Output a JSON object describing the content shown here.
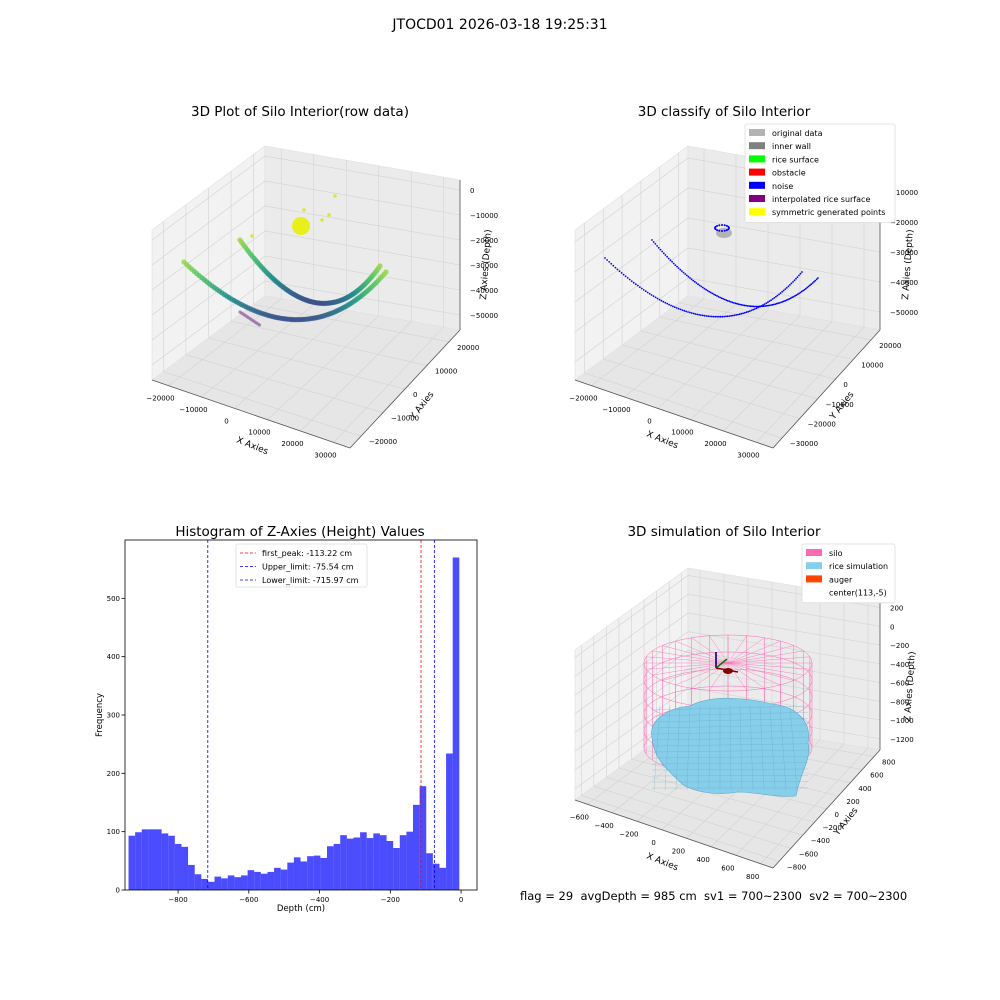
{
  "suptitle": "JTOCD01 2026-03-18 19:25:31",
  "footer": "flag = 29  avgDepth = 985 cm  sv1 = 700~2300  sv2 = 700~2300",
  "chart_data": [
    {
      "type": "scatter",
      "title": "3D Plot of Silo Interior(row data)",
      "xlabel": "X Axies",
      "ylabel": "Y Axies",
      "zlabel": "Z Axies (Depth)",
      "x_ticks": [
        "−20000",
        "−10000",
        "0",
        "10000",
        "20000",
        "30000"
      ],
      "y_ticks": [
        "−20000",
        "−10000",
        "0",
        "10000",
        "20000"
      ],
      "z_ticks": [
        "0",
        "−10000",
        "−20000",
        "−30000",
        "−40000",
        "−50000"
      ],
      "series": [
        {
          "colormap": "viridis",
          "x": [
            -26000,
            -20000,
            -12000,
            -4000,
            4000,
            12000,
            20000,
            27000
          ],
          "y": [
            -4000,
            4000,
            9000,
            12000,
            12000,
            9000,
            4000,
            -4000
          ],
          "z": [
            -25000,
            -33000,
            -39000,
            -43000,
            -43000,
            -39000,
            -33000,
            -25000
          ]
        },
        {
          "colormap": "viridis",
          "x": [
            -8000,
            -2000,
            4000,
            10000,
            16000,
            22000,
            28000
          ],
          "y": [
            18000,
            12000,
            6000,
            0,
            -6000,
            -12000,
            -18000
          ],
          "z": [
            -12000,
            -24000,
            -33000,
            -40000,
            -44000,
            -38000,
            -28000
          ]
        }
      ]
    },
    {
      "type": "scatter",
      "title": "3D classify of Silo Interior",
      "xlabel": "X Axies",
      "ylabel": "Y Axies",
      "zlabel": "Z Axies (Depth)",
      "x_ticks": [
        "−20000",
        "−10000",
        "0",
        "10000",
        "20000",
        "30000"
      ],
      "y_ticks": [
        "−30000",
        "−20000",
        "−10000",
        "0",
        "10000",
        "20000"
      ],
      "z_ticks": [
        "−10000",
        "−20000",
        "−30000",
        "−40000",
        "−50000"
      ],
      "legend": [
        {
          "label": "original data",
          "color": "#b3b3b3"
        },
        {
          "label": "inner wall",
          "color": "#808080"
        },
        {
          "label": "rice surface",
          "color": "#00ff00"
        },
        {
          "label": "obstacle",
          "color": "#ff0000"
        },
        {
          "label": "noise",
          "color": "#0000ff"
        },
        {
          "label": "interpolated rice surface",
          "color": "#800080"
        },
        {
          "label": "symmetric generated points",
          "color": "#ffff00"
        }
      ]
    },
    {
      "type": "bar",
      "title": "Histogram of Z-Axies (Height) Values",
      "xlabel": "Depth (cm)",
      "ylabel": "Frequency",
      "xlim": [
        -950,
        45
      ],
      "ylim": [
        0,
        600
      ],
      "x_ticks": [
        -800,
        -600,
        -400,
        -200,
        0
      ],
      "y_ticks": [
        0,
        100,
        200,
        300,
        400,
        500
      ],
      "bin_start": -940,
      "bin_width": 18.7,
      "values": [
        93,
        99,
        104,
        104,
        104,
        97,
        93,
        79,
        74,
        43,
        27,
        19,
        14,
        23,
        20,
        25,
        22,
        25,
        34,
        31,
        28,
        31,
        38,
        35,
        47,
        56,
        49,
        58,
        59,
        55,
        75,
        79,
        94,
        88,
        90,
        99,
        89,
        97,
        94,
        84,
        72,
        94,
        100,
        146,
        178,
        63,
        45,
        38,
        234,
        570
      ],
      "color": "#0000ff",
      "vlines": [
        {
          "label": "first_peak: -113.22 cm",
          "x": -113.22,
          "color": "#ff0000"
        },
        {
          "label": "Upper_limit: -75.54 cm",
          "x": -75.54,
          "color": "#0000ff"
        },
        {
          "label": "Lower_limit: -715.97 cm",
          "x": -715.97,
          "color": "#0000ff"
        }
      ]
    },
    {
      "type": "surface",
      "title": "3D simulation of Silo Interior",
      "xlabel": "X Axies",
      "ylabel": "Y Axies",
      "zlabel": "Z Axies (Depth)",
      "x_ticks": [
        "−600",
        "−400",
        "−200",
        "0",
        "200",
        "400",
        "600",
        "800"
      ],
      "y_ticks": [
        "−800",
        "−600",
        "−400",
        "−200",
        "0",
        "200",
        "400",
        "600",
        "800"
      ],
      "z_ticks": [
        "200",
        "0",
        "−200",
        "−400",
        "−600",
        "−800",
        "−1000",
        "−1200"
      ],
      "legend": [
        {
          "label": "silo",
          "color": "#ff69b4"
        },
        {
          "label": "rice simulation",
          "color": "#87ceeb"
        },
        {
          "label": "auger",
          "color": "#ff4500"
        },
        {
          "label": "center(113,-5)",
          "color": null
        }
      ]
    }
  ]
}
